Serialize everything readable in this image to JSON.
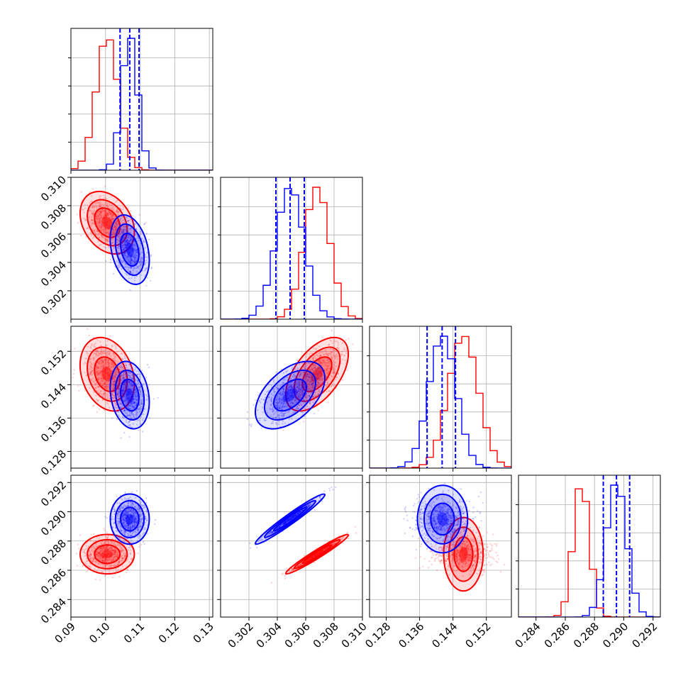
{
  "chart_data": {
    "type": "corner",
    "n_params": 4,
    "colors": {
      "series_a": "#ff0000",
      "series_b": "#0000ff"
    },
    "axis_ranges": [
      [
        0.09,
        0.131
      ],
      [
        0.3,
        0.31
      ],
      [
        0.124,
        0.158
      ],
      [
        0.2828,
        0.2925
      ]
    ],
    "bottom_tick_labels": [
      [
        "0.09",
        "0.10",
        "0.11",
        "0.12",
        "0.13"
      ],
      [
        "0.302",
        "0.304",
        "0.306",
        "0.308",
        "0.310"
      ],
      [
        "0.128",
        "0.136",
        "0.144",
        "0.152"
      ],
      [
        "0.284",
        "0.286",
        "0.288",
        "0.290",
        "0.292"
      ]
    ],
    "bottom_tick_values": [
      [
        0.09,
        0.1,
        0.11,
        0.12,
        0.13
      ],
      [
        0.302,
        0.304,
        0.306,
        0.308,
        0.31
      ],
      [
        0.128,
        0.136,
        0.144,
        0.152
      ],
      [
        0.284,
        0.286,
        0.288,
        0.29,
        0.292
      ]
    ],
    "left_tick_labels": [
      [],
      [
        "0.302",
        "0.304",
        "0.306",
        "0.308",
        "0.310"
      ],
      [
        "0.128",
        "0.136",
        "0.144",
        "0.152"
      ],
      [
        "0.284",
        "0.286",
        "0.288",
        "0.290",
        "0.292"
      ]
    ],
    "left_tick_values": [
      [],
      [
        0.302,
        0.304,
        0.306,
        0.308,
        0.31
      ],
      [
        0.128,
        0.136,
        0.144,
        0.152
      ],
      [
        0.284,
        0.286,
        0.288,
        0.29,
        0.292
      ]
    ],
    "grid": true,
    "series": [
      {
        "color": "#ff0000",
        "means": [
          0.1005,
          0.3068,
          0.1465,
          0.2871
        ],
        "sds": [
          0.0032,
          0.0009,
          0.0036,
          0.00055
        ],
        "correlations": [
          [
            0,
            1,
            -0.3
          ],
          [
            0,
            2,
            -0.25
          ],
          [
            1,
            2,
            0.55
          ],
          [
            1,
            3,
            0.97
          ]
        ],
        "quantile_lines": false
      },
      {
        "color": "#0000ff",
        "means": [
          0.107,
          0.3049,
          0.1415,
          0.2895
        ],
        "sds": [
          0.0023,
          0.001,
          0.0033,
          0.0007
        ],
        "correlations": [
          [
            0,
            1,
            -0.3
          ],
          [
            0,
            2,
            -0.2
          ],
          [
            1,
            2,
            0.5
          ],
          [
            1,
            3,
            0.97
          ]
        ],
        "quantile_lines": true,
        "quantiles": [
          [
            0.1042,
            0.107,
            0.1097
          ],
          [
            0.3039,
            0.3049,
            0.3059
          ],
          [
            0.1378,
            0.1414,
            0.1446
          ],
          [
            0.2886,
            0.2895,
            0.2904
          ]
        ]
      }
    ]
  }
}
